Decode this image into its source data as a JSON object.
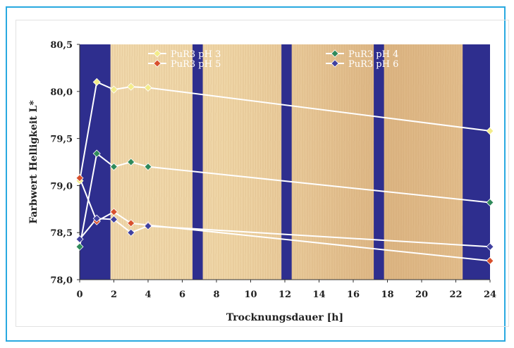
{
  "chart_data": {
    "type": "line",
    "title": "",
    "xlabel": "Trocknungsdauer [h]",
    "ylabel": "Farbwert Helligkeit L*",
    "xlim": [
      0,
      24
    ],
    "ylim": [
      78.0,
      80.5
    ],
    "x_ticks": [
      "0",
      "2",
      "4",
      "6",
      "8",
      "10",
      "12",
      "14",
      "16",
      "18",
      "20",
      "22",
      "24"
    ],
    "y_ticks": [
      "78,0",
      "78,5",
      "79,0",
      "79,5",
      "80,0",
      "80,5"
    ],
    "x_tick_values": [
      0,
      2,
      4,
      6,
      8,
      10,
      12,
      14,
      16,
      18,
      20,
      22,
      24
    ],
    "y_tick_values": [
      78.0,
      78.5,
      79.0,
      79.5,
      80.0,
      80.5
    ],
    "x": [
      0,
      1,
      2,
      3,
      4,
      24
    ],
    "series": [
      {
        "name": "PuR3 pH 3",
        "color": "#f3ec8a",
        "values": [
          79.05,
          80.1,
          80.02,
          80.05,
          80.04,
          79.58
        ]
      },
      {
        "name": "PuR3 pH 4",
        "color": "#2f8a5a",
        "values": [
          78.35,
          79.34,
          79.2,
          79.25,
          79.2,
          78.82
        ]
      },
      {
        "name": "PuR3 pH 5",
        "color": "#d8502d",
        "values": [
          79.08,
          78.62,
          78.72,
          78.6,
          78.58,
          78.2
        ]
      },
      {
        "name": "PuR3 pH 6",
        "color": "#4040a0",
        "values": [
          78.43,
          78.65,
          78.64,
          78.5,
          78.57,
          78.35
        ]
      }
    ],
    "bands": [
      [
        0,
        1.8
      ],
      [
        6.6,
        7.2
      ],
      [
        11.8,
        12.4
      ],
      [
        17.2,
        17.8
      ],
      [
        22.4,
        24
      ]
    ],
    "band_color": "#2e2e8e",
    "background": "wood texture",
    "line_color": "#ffffff",
    "legend_position": "top"
  }
}
